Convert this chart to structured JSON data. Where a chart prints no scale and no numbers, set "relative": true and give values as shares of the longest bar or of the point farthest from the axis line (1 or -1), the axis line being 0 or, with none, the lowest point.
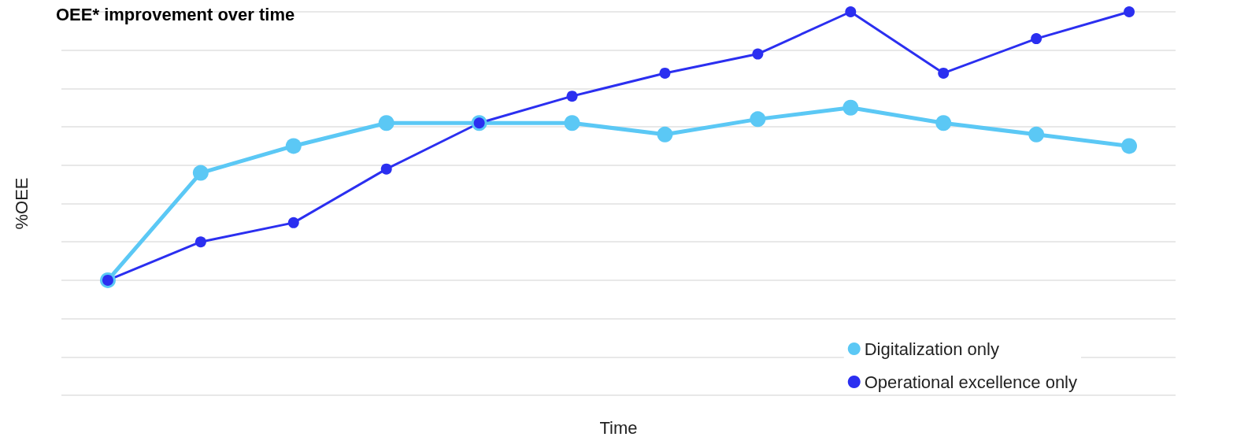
{
  "chart_data": {
    "type": "line",
    "title": "OEE* improvement over time",
    "xlabel": "Time",
    "ylabel": "%OEE",
    "relative": true,
    "categories": [
      null,
      null,
      null,
      null,
      null,
      null,
      null,
      null,
      null,
      null,
      null,
      null
    ],
    "series": [
      {
        "name": "Digitalization only",
        "color": "#5bc8f5",
        "values": [
          0.3,
          0.58,
          0.65,
          0.71,
          0.71,
          0.71,
          0.68,
          0.72,
          0.75,
          0.71,
          0.68,
          0.65
        ]
      },
      {
        "name": "Operational excellence only",
        "color": "#2b2ff0",
        "values": [
          0.3,
          0.4,
          0.45,
          0.59,
          0.71,
          0.78,
          0.84,
          0.89,
          1,
          0.84,
          0.93,
          1
        ]
      }
    ],
    "grid": "y",
    "legend": "bottom right",
    "marker": "circle",
    "line_style": "solid"
  }
}
